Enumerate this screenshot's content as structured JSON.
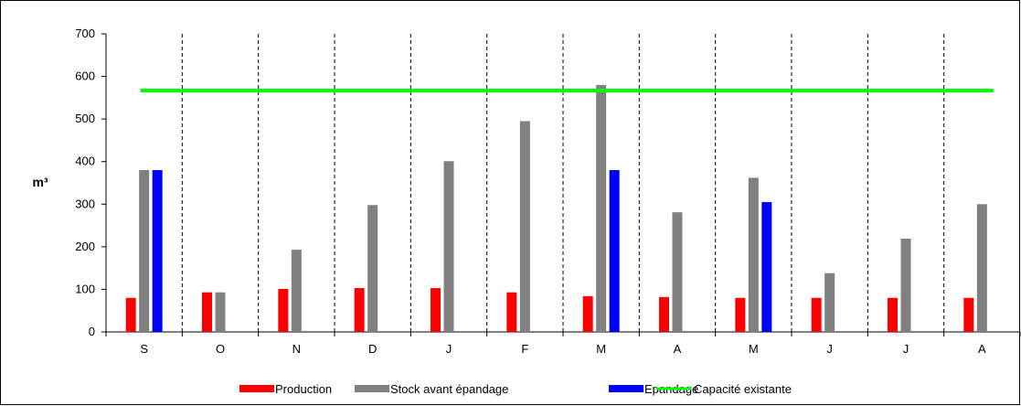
{
  "chart_data": {
    "type": "bar",
    "title": "",
    "xlabel": "",
    "ylabel": "m³",
    "ylim": [
      0,
      700
    ],
    "yticks": [
      0,
      100,
      200,
      300,
      400,
      500,
      600,
      700
    ],
    "categories": [
      "S",
      "O",
      "N",
      "D",
      "J",
      "F",
      "M",
      "A",
      "M",
      "J",
      "J",
      "A"
    ],
    "series": [
      {
        "name": "Production",
        "color": "#ff0000",
        "values": [
          80,
          93,
          101,
          103,
          103,
          93,
          84,
          82,
          80,
          80,
          80,
          80
        ]
      },
      {
        "name": "Stock avant épandage",
        "color": "#808080",
        "values": [
          380,
          93,
          193,
          298,
          401,
          495,
          580,
          281,
          362,
          138,
          219,
          300
        ]
      },
      {
        "name": "Epandage",
        "color": "#0000ff",
        "values": [
          380,
          0,
          0,
          0,
          0,
          0,
          380,
          0,
          305,
          0,
          0,
          0
        ]
      }
    ],
    "reference_line": {
      "name": "Capacité existante",
      "color": "#00ff00",
      "value": 567
    },
    "grid": "vertical dashed separators between months",
    "legend_position": "bottom"
  }
}
